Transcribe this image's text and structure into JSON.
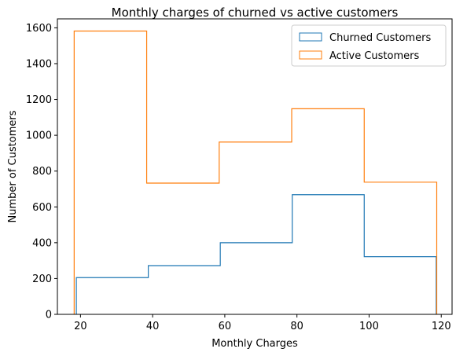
{
  "chart_data": {
    "type": "histogram-step",
    "title": "Monthly charges of churned vs active customers",
    "xlabel": "Monthly Charges",
    "ylabel": "Number of Customers",
    "xlim": [
      13.6,
      123.0
    ],
    "ylim": [
      0,
      1650
    ],
    "xticks": [
      20,
      40,
      60,
      80,
      100,
      120
    ],
    "yticks": [
      0,
      200,
      400,
      600,
      800,
      1000,
      1200,
      1400,
      1600
    ],
    "legend_position": "top-right",
    "grid": false,
    "series": [
      {
        "name": "Churned Customers",
        "color": "#1f77b4",
        "bin_edges": [
          18.85,
          38.8,
          58.75,
          78.7,
          98.65,
          118.6
        ],
        "counts": [
          205,
          272,
          400,
          668,
          322
        ]
      },
      {
        "name": "Active Customers",
        "color": "#ff7f0e",
        "bin_edges": [
          18.25,
          38.35,
          58.45,
          78.55,
          98.65,
          118.75
        ],
        "counts": [
          1582,
          733,
          962,
          1148,
          738
        ]
      }
    ]
  }
}
